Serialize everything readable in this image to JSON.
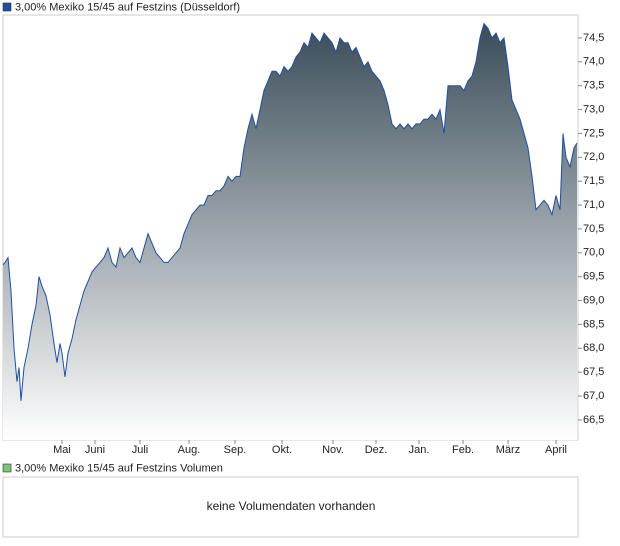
{
  "chart_data": {
    "type": "area",
    "title": "3,00% Mexiko 15/45 auf Festzins (Düsseldorf)",
    "color": "#1f4fa0",
    "marker_color": "#1f4fa0",
    "fill_top": "#3a4c59",
    "fill_bottom": "#ffffff",
    "grid": false,
    "x": [
      3,
      5,
      8,
      11,
      14,
      17,
      19,
      21,
      24,
      28,
      32,
      36,
      39,
      42,
      46,
      50,
      54,
      57,
      60,
      62,
      65,
      68,
      72,
      76,
      80,
      84,
      88,
      92,
      96,
      100,
      104,
      108,
      112,
      116,
      120,
      124,
      128,
      132,
      136,
      140,
      144,
      148,
      152,
      156,
      160,
      164,
      168,
      172,
      176,
      180,
      184,
      188,
      192,
      196,
      200,
      204,
      208,
      212,
      216,
      220,
      224,
      228,
      232,
      236,
      240,
      244,
      248,
      252,
      256,
      260,
      264,
      268,
      272,
      276,
      280,
      284,
      288,
      292,
      296,
      300,
      304,
      308,
      312,
      316,
      320,
      324,
      328,
      332,
      336,
      340,
      344,
      348,
      352,
      356,
      360,
      364,
      368,
      372,
      376,
      380,
      384,
      388,
      392,
      396,
      400,
      404,
      408,
      412,
      416,
      420,
      424,
      428,
      432,
      436,
      440,
      444,
      448,
      452,
      456,
      460,
      464,
      468,
      472,
      476,
      480,
      484,
      488,
      492,
      496,
      500,
      504,
      508,
      512,
      516,
      520,
      524,
      528,
      532,
      536,
      540,
      544,
      548,
      552,
      556,
      560,
      563,
      566,
      570,
      574,
      577
    ],
    "values": [
      69.75,
      69.8,
      69.9,
      69.2,
      68.0,
      67.3,
      67.6,
      66.9,
      67.6,
      68.0,
      68.5,
      68.9,
      69.5,
      69.3,
      69.1,
      68.7,
      68.1,
      67.7,
      68.1,
      67.9,
      67.4,
      67.9,
      68.2,
      68.6,
      68.9,
      69.2,
      69.4,
      69.6,
      69.7,
      69.8,
      69.9,
      70.1,
      69.8,
      69.7,
      70.1,
      69.9,
      70.0,
      70.1,
      69.9,
      69.8,
      70.1,
      70.4,
      70.2,
      70.0,
      69.9,
      69.8,
      69.8,
      69.9,
      70.0,
      70.1,
      70.4,
      70.6,
      70.8,
      70.9,
      71.0,
      71.0,
      71.2,
      71.2,
      71.3,
      71.3,
      71.4,
      71.6,
      71.5,
      71.6,
      71.6,
      72.2,
      72.6,
      72.9,
      72.6,
      73.0,
      73.4,
      73.6,
      73.8,
      73.8,
      73.7,
      73.9,
      73.8,
      73.9,
      74.1,
      74.2,
      74.4,
      74.3,
      74.6,
      74.5,
      74.4,
      74.6,
      74.5,
      74.4,
      74.2,
      74.5,
      74.4,
      74.4,
      74.2,
      74.3,
      74.1,
      73.9,
      74.0,
      73.8,
      73.7,
      73.6,
      73.4,
      73.1,
      72.7,
      72.6,
      72.7,
      72.6,
      72.7,
      72.6,
      72.7,
      72.7,
      72.8,
      72.8,
      72.9,
      72.8,
      73.0,
      72.5,
      73.5,
      73.5,
      73.5,
      73.5,
      73.4,
      73.6,
      73.7,
      74.0,
      74.5,
      74.8,
      74.7,
      74.5,
      74.6,
      74.4,
      74.5,
      73.9,
      73.2,
      73.0,
      72.8,
      72.5,
      72.2,
      71.6,
      70.9,
      71.0,
      71.1,
      71.0,
      70.8,
      71.2,
      70.9,
      72.5,
      72.0,
      71.8,
      72.2,
      72.3
    ],
    "xlim": [
      3,
      578
    ],
    "xticks": [
      {
        "value": 62,
        "label": "Mai"
      },
      {
        "value": 95,
        "label": "Juni"
      },
      {
        "value": 140,
        "label": "Juli"
      },
      {
        "value": 189,
        "label": "Aug."
      },
      {
        "value": 235,
        "label": "Sep."
      },
      {
        "value": 282,
        "label": "Okt."
      },
      {
        "value": 333,
        "label": "Nov."
      },
      {
        "value": 376,
        "label": "Dez."
      },
      {
        "value": 419,
        "label": "Jan."
      },
      {
        "value": 463,
        "label": "Feb."
      },
      {
        "value": 508,
        "label": "März"
      },
      {
        "value": 556,
        "label": "April"
      }
    ],
    "ylim": [
      66.08,
      74.98
    ],
    "yticks": [
      {
        "value": 66.5,
        "label": "66,5"
      },
      {
        "value": 67,
        "label": "67,0"
      },
      {
        "value": 67.5,
        "label": "67,5"
      },
      {
        "value": 68,
        "label": "68,0"
      },
      {
        "value": 68.5,
        "label": "68,5"
      },
      {
        "value": 69,
        "label": "69,0"
      },
      {
        "value": 69.5,
        "label": "69,5"
      },
      {
        "value": 70,
        "label": "70,0"
      },
      {
        "value": 70.5,
        "label": "70,5"
      },
      {
        "value": 71,
        "label": "71,0"
      },
      {
        "value": 71.5,
        "label": "71,5"
      },
      {
        "value": 72,
        "label": "72,0"
      },
      {
        "value": 72.5,
        "label": "72,5"
      },
      {
        "value": 73,
        "label": "73,0"
      },
      {
        "value": 73.5,
        "label": "73,5"
      },
      {
        "value": 74,
        "label": "74,0"
      },
      {
        "value": 74.5,
        "label": "74,5"
      }
    ]
  },
  "volume_panel": {
    "title": "3,00% Mexiko 15/45 auf Festzins Volumen",
    "marker_color": "#7cc47c",
    "message": "keine Volumendaten vorhanden"
  }
}
